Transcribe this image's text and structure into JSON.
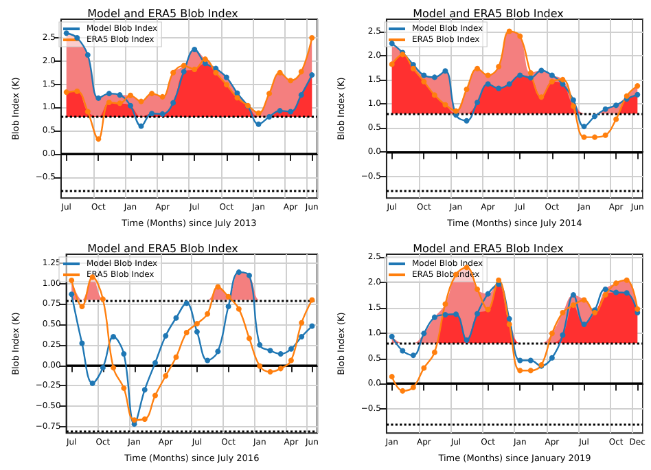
{
  "chart_data": [
    {
      "type": "line",
      "title": "Model and ERA5 Blob Index",
      "xlabel": "Time (Months) since July 2013",
      "ylabel": "Blob Index (K)",
      "categories": [
        "Jul",
        null,
        null,
        "Oct",
        null,
        null,
        "Jan",
        null,
        null,
        "Apr",
        null,
        null,
        "Jul",
        null,
        null,
        "Oct",
        null,
        null,
        "Jan",
        null,
        null,
        "Apr",
        null,
        "Jun"
      ],
      "series": [
        {
          "type": "area",
          "marker": "none",
          "color": "#f47f7f",
          "values": [
            2.6,
            2.5,
            2.13,
            1.2,
            1.3,
            1.27,
            1.26,
            1.13,
            1.3,
            1.23,
            1.75,
            1.9,
            2.25,
            2.04,
            1.84,
            1.65,
            1.31,
            1.04,
            0.88,
            1.3,
            1.75,
            1.58,
            1.77,
            2.5
          ]
        },
        {
          "type": "area",
          "marker": "none",
          "color": "#ff3030",
          "values": [
            1.33,
            1.35,
            0.91,
            0.8,
            1.11,
            1.09,
            1.04,
            0.8,
            0.87,
            0.86,
            1.1,
            1.77,
            1.82,
            1.95,
            1.75,
            1.49,
            1.21,
            1.03,
            0.8,
            0.8,
            0.93,
            0.91,
            1.27,
            1.7
          ]
        },
        {
          "name": "Model Blob Index",
          "color": "#1f77b4",
          "values": [
            2.6,
            2.5,
            2.13,
            1.2,
            1.3,
            1.27,
            1.04,
            0.6,
            0.87,
            0.86,
            1.1,
            1.77,
            2.25,
            1.95,
            1.84,
            1.65,
            1.31,
            1.03,
            0.64,
            0.8,
            0.93,
            0.91,
            1.27,
            1.7
          ]
        },
        {
          "name": "ERA5 Blob Index",
          "color": "#ff7f0e",
          "values": [
            1.33,
            1.35,
            0.91,
            0.32,
            1.11,
            1.09,
            1.26,
            1.13,
            1.3,
            1.23,
            1.75,
            1.9,
            1.82,
            2.04,
            1.75,
            1.49,
            1.21,
            1.04,
            0.88,
            1.3,
            1.75,
            1.58,
            1.77,
            2.5
          ]
        }
      ],
      "ylim": [
        -0.95,
        2.9
      ],
      "yticks": [
        {
          "value": -0.5,
          "label": "−0.5"
        },
        {
          "value": 0,
          "label": "0.0"
        },
        {
          "value": 0.5,
          "label": "0.5"
        },
        {
          "value": 1,
          "label": "1.0"
        },
        {
          "value": 1.5,
          "label": "1.5"
        },
        {
          "value": 2,
          "label": "2.0"
        },
        {
          "value": 2.5,
          "label": "2.5"
        }
      ],
      "ref_lines": [
        {
          "axis": "y",
          "value": 0.8,
          "line_style": "dotted"
        },
        {
          "axis": "y",
          "value": -0.8,
          "line_style": "dotted"
        },
        {
          "axis": "y",
          "value": 0,
          "line_style": "solid"
        }
      ],
      "grid": true,
      "legend": "top left",
      "marker": "circle"
    },
    {
      "type": "line",
      "title": "Model and ERA5 Blob Index",
      "xlabel": "Time (Months) since July 2014",
      "ylabel": "Blob Index (K)",
      "categories": [
        "Jul",
        null,
        null,
        "Oct",
        null,
        null,
        "Jan",
        null,
        null,
        "Apr",
        null,
        null,
        "Jul",
        null,
        null,
        "Oct",
        null,
        null,
        "Jan",
        null,
        null,
        "Apr",
        null,
        "Jun"
      ],
      "series": [
        {
          "type": "area",
          "marker": "none",
          "color": "#f47f7f",
          "values": [
            2.25,
            2.06,
            1.81,
            1.59,
            1.55,
            1.68,
            0.85,
            1.3,
            1.73,
            1.59,
            1.77,
            2.5,
            2.4,
            1.64,
            1.69,
            1.59,
            1.5,
            1.08,
            0.8,
            0.8,
            0.89,
            0.97,
            1.16,
            1.37
          ]
        },
        {
          "type": "area",
          "marker": "none",
          "color": "#ff3030",
          "values": [
            1.82,
            2.02,
            1.73,
            1.46,
            1.18,
            0.98,
            0.8,
            0.8,
            1.03,
            1.41,
            1.32,
            1.41,
            1.59,
            1.54,
            1.14,
            1.46,
            1.41,
            0.95,
            0.8,
            0.8,
            0.8,
            0.8,
            1.1,
            1.19
          ]
        },
        {
          "name": "Model Blob Index",
          "color": "#1f77b4",
          "values": [
            2.25,
            2.06,
            1.81,
            1.59,
            1.55,
            1.68,
            0.77,
            0.65,
            1.03,
            1.41,
            1.32,
            1.41,
            1.59,
            1.54,
            1.69,
            1.59,
            1.41,
            1.08,
            0.53,
            0.74,
            0.89,
            0.97,
            1.1,
            1.19
          ]
        },
        {
          "name": "ERA5 Blob Index",
          "color": "#ff7f0e",
          "values": [
            1.82,
            2.02,
            1.73,
            1.46,
            1.18,
            0.98,
            0.85,
            1.3,
            1.73,
            1.59,
            1.77,
            2.5,
            2.4,
            1.64,
            1.14,
            1.46,
            1.5,
            0.95,
            0.31,
            0.31,
            0.35,
            0.68,
            1.16,
            1.37
          ]
        }
      ],
      "ylim": [
        -0.95,
        2.75
      ],
      "yticks": [
        {
          "value": -0.5,
          "label": "−0.5"
        },
        {
          "value": 0,
          "label": "0.0"
        },
        {
          "value": 0.5,
          "label": "0.5"
        },
        {
          "value": 1,
          "label": "1.0"
        },
        {
          "value": 1.5,
          "label": "1.5"
        },
        {
          "value": 2,
          "label": "2.0"
        },
        {
          "value": 2.5,
          "label": "2.5"
        }
      ],
      "ref_lines": [
        {
          "axis": "y",
          "value": 0.8,
          "line_style": "dotted"
        },
        {
          "axis": "y",
          "value": -0.8,
          "line_style": "dotted"
        },
        {
          "axis": "y",
          "value": 0,
          "line_style": "solid"
        }
      ],
      "grid": true,
      "legend": "top left",
      "marker": "circle"
    },
    {
      "type": "line",
      "title": "Model and ERA5 Blob Index",
      "xlabel": "Time (Months) since July 2016",
      "ylabel": "Blob Index (K)",
      "categories": [
        "Jul",
        null,
        null,
        "Oct",
        null,
        null,
        "Jan",
        null,
        null,
        "Apr",
        null,
        null,
        "Jul",
        null,
        null,
        "Oct",
        null,
        null,
        "Jan",
        null,
        null,
        "Apr",
        null,
        "Jun"
      ],
      "series": [
        {
          "type": "area",
          "marker": "none",
          "color": "#f47f7f",
          "values": [
            1.04,
            0.8,
            1.08,
            0.81,
            0.8,
            0.8,
            0.8,
            0.8,
            0.8,
            0.8,
            0.8,
            0.8,
            0.8,
            0.8,
            0.96,
            0.84,
            1.14,
            1.1,
            0.8,
            0.8,
            0.8,
            0.8,
            0.8,
            0.8
          ]
        },
        {
          "name": "Model Blob Index",
          "color": "#1f77b4",
          "values": [
            0.87,
            0.27,
            -0.22,
            -0.03,
            0.35,
            0.14,
            -0.72,
            -0.3,
            0.03,
            0.36,
            0.58,
            0.76,
            0.41,
            0.06,
            0.17,
            0.72,
            1.14,
            1.1,
            0.25,
            0.18,
            0.14,
            0.2,
            0.35,
            0.48
          ]
        },
        {
          "name": "ERA5 Blob Index",
          "color": "#ff7f0e",
          "values": [
            1.04,
            0.72,
            1.08,
            0.81,
            -0.03,
            -0.28,
            -0.67,
            -0.66,
            -0.37,
            -0.13,
            0.1,
            0.4,
            0.51,
            0.63,
            0.96,
            0.84,
            0.69,
            0.33,
            -0.01,
            -0.08,
            -0.04,
            0.06,
            0.52,
            0.8
          ]
        }
      ],
      "ylim": [
        -0.83,
        1.36
      ],
      "yticks": [
        {
          "value": -0.75,
          "label": "−0.75"
        },
        {
          "value": -0.5,
          "label": "−0.50"
        },
        {
          "value": -0.25,
          "label": "−0.25"
        },
        {
          "value": 0,
          "label": "0.00"
        },
        {
          "value": 0.25,
          "label": "0.25"
        },
        {
          "value": 0.5,
          "label": "0.50"
        },
        {
          "value": 0.75,
          "label": "0.75"
        },
        {
          "value": 1,
          "label": "1.00"
        },
        {
          "value": 1.25,
          "label": "1.25"
        }
      ],
      "ref_lines": [
        {
          "axis": "y",
          "value": 0.8,
          "line_style": "dotted"
        },
        {
          "axis": "y",
          "value": -0.8,
          "line_style": "dotted"
        },
        {
          "axis": "y",
          "value": 0,
          "line_style": "solid"
        }
      ],
      "grid": true,
      "legend": "top left",
      "marker": "circle"
    },
    {
      "type": "line",
      "title": "Model and ERA5 Blob Index",
      "xlabel": "Time (Months) since January 2019",
      "ylabel": "Blob Index (K)",
      "categories": [
        "Jan",
        null,
        null,
        "Apr",
        null,
        null,
        "Jul",
        null,
        null,
        "Oct",
        null,
        null,
        "Jan",
        null,
        null,
        "Apr",
        null,
        null,
        "Jul",
        null,
        null,
        "Oct",
        null,
        "Dec"
      ],
      "series": [
        {
          "type": "area",
          "marker": "none",
          "color": "#f47f7f",
          "values": [
            0.93,
            0.8,
            0.8,
            0.99,
            1.31,
            1.57,
            2.15,
            2.29,
            1.86,
            1.77,
            2.04,
            1.28,
            0.8,
            0.8,
            0.8,
            0.99,
            1.4,
            1.75,
            1.65,
            1.45,
            1.86,
            1.98,
            2.04,
            1.47
          ]
        },
        {
          "type": "area",
          "marker": "none",
          "color": "#ff3030",
          "values": [
            0.8,
            0.8,
            0.8,
            0.8,
            0.8,
            1.36,
            1.37,
            0.86,
            1.38,
            1.46,
            1.96,
            1.17,
            0.8,
            0.8,
            0.8,
            0.8,
            0.96,
            1.55,
            1.17,
            1.4,
            1.75,
            1.8,
            1.79,
            1.4
          ]
        },
        {
          "name": "Model Blob Index",
          "color": "#1f77b4",
          "values": [
            0.93,
            0.65,
            0.56,
            0.99,
            1.31,
            1.36,
            1.37,
            0.86,
            1.38,
            1.77,
            1.96,
            1.28,
            0.46,
            0.46,
            0.35,
            0.51,
            0.96,
            1.75,
            1.17,
            1.45,
            1.86,
            1.8,
            1.79,
            1.4
          ]
        },
        {
          "name": "ERA5 Blob Index",
          "color": "#ff7f0e",
          "values": [
            0.14,
            -0.14,
            -0.07,
            0.31,
            0.62,
            1.57,
            2.15,
            2.29,
            1.86,
            1.46,
            2.04,
            1.17,
            0.26,
            0.26,
            0.37,
            0.99,
            1.4,
            1.55,
            1.65,
            1.4,
            1.75,
            1.98,
            2.04,
            1.47
          ]
        }
      ],
      "ylim": [
        -0.97,
        2.55
      ],
      "yticks": [
        {
          "value": -0.5,
          "label": "−0.5"
        },
        {
          "value": 0,
          "label": "0.0"
        },
        {
          "value": 0.5,
          "label": "0.5"
        },
        {
          "value": 1,
          "label": "1.0"
        },
        {
          "value": 1.5,
          "label": "1.5"
        },
        {
          "value": 2,
          "label": "2.0"
        },
        {
          "value": 2.5,
          "label": "2.5"
        }
      ],
      "ref_lines": [
        {
          "axis": "y",
          "value": 0.8,
          "line_style": "dotted"
        },
        {
          "axis": "y",
          "value": -0.8,
          "line_style": "dotted"
        },
        {
          "axis": "y",
          "value": 0,
          "line_style": "solid"
        }
      ],
      "grid": true,
      "legend": "top left",
      "marker": "circle"
    }
  ]
}
